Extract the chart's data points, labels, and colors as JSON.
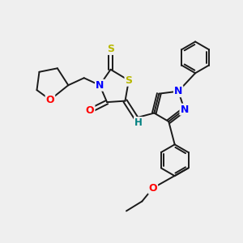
{
  "bg_color": "#efefef",
  "bond_color": "#1a1a1a",
  "bond_width": 1.4,
  "fig_size": [
    3.0,
    3.0
  ],
  "dpi": 100,
  "xlim": [
    0.0,
    10.0
  ],
  "ylim": [
    0.5,
    10.5
  ]
}
